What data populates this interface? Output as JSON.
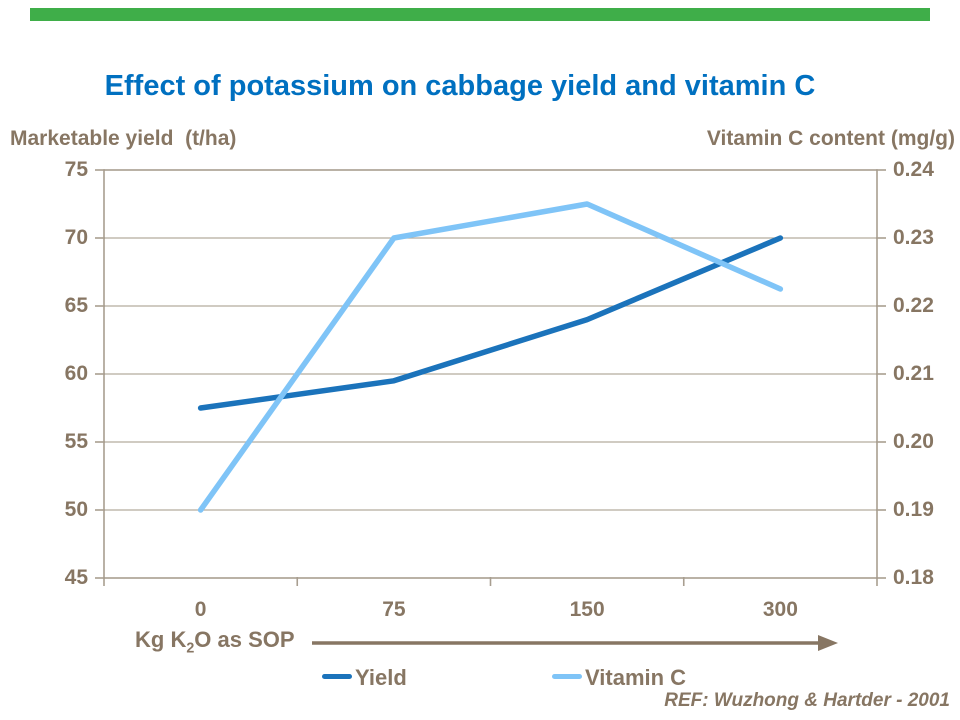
{
  "page": {
    "title": "Effect of potassium on cabbage yield and vitamin C",
    "title_color": "#0070C0",
    "ref_note": "REF: Wuzhong & Hartder - 2001",
    "accent_bar_color": "#3FAE49",
    "text_color": "#877663",
    "axis_line_color": "#A89E90",
    "grid_line_color": "#B5AC9E"
  },
  "chart_data": {
    "type": "line",
    "title": "Effect of potassium on cabbage yield and vitamin C",
    "categories": [
      "0",
      "75",
      "150",
      "300"
    ],
    "x_axis": {
      "label_prefix": "Kg K",
      "label_sub": "2",
      "label_suffix": "O as SOP",
      "arrow": true
    },
    "left_axis": {
      "title": "Marketable yield  (t/ha)",
      "ticks": [
        "75",
        "70",
        "65",
        "60",
        "55",
        "50",
        "45"
      ],
      "range": [
        45,
        75
      ]
    },
    "right_axis": {
      "title": "Vitamin C content (mg/g)",
      "ticks": [
        "0.24",
        "0.23",
        "0.22",
        "0.21",
        "0.20",
        "0.19",
        "0.18"
      ],
      "range": [
        0.18,
        0.24
      ]
    },
    "series": [
      {
        "name": "Yield",
        "axis": "left",
        "color": "#1B73BB",
        "values": [
          57.5,
          59.5,
          64,
          70
        ]
      },
      {
        "name": "Vitamin C",
        "axis": "right",
        "color": "#7FC4F7",
        "values": [
          0.19,
          0.23,
          0.235,
          0.2225
        ]
      }
    ],
    "legend": {
      "position": "bottom",
      "items": [
        "Yield",
        "Vitamin C"
      ]
    },
    "grid": "horizontal"
  }
}
